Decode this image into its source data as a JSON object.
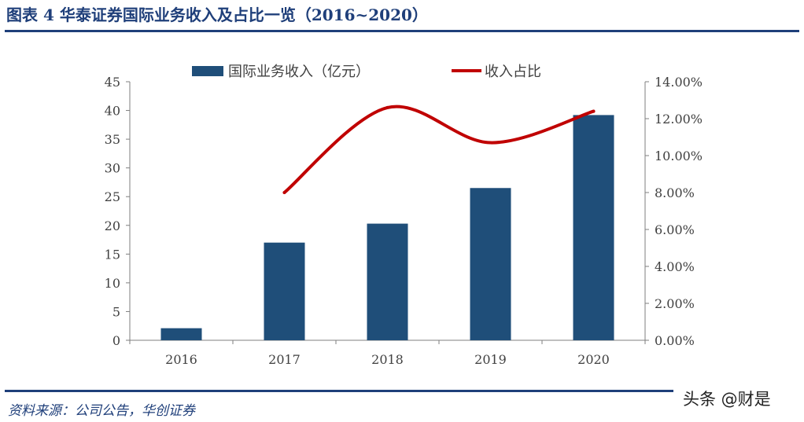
{
  "header": {
    "title": "图表 4   华泰证券国际业务收入及占比一览（2016~2020）"
  },
  "footer": {
    "source": "资料来源：公司公告，华创证券",
    "watermark": "头条 @财是"
  },
  "colors": {
    "bar": "#1f4e79",
    "line": "#c00000",
    "axis": "#7f7f7f",
    "title": "#1f3f7a"
  },
  "chart_data": {
    "type": "bar",
    "categories": [
      "2016",
      "2017",
      "2018",
      "2019",
      "2020"
    ],
    "series": [
      {
        "name": "国际业务收入（亿元）",
        "type": "bar",
        "axis": "left",
        "values": [
          2.1,
          17.0,
          20.3,
          26.5,
          39.2
        ]
      },
      {
        "name": "收入占比",
        "type": "line",
        "axis": "right",
        "values": [
          null,
          8.0,
          12.6,
          10.7,
          12.4
        ]
      }
    ],
    "y_left": {
      "range": [
        0,
        45
      ],
      "ticks": [
        "0",
        "5",
        "10",
        "15",
        "20",
        "25",
        "30",
        "35",
        "40",
        "45"
      ]
    },
    "y_right": {
      "range": [
        0,
        14
      ],
      "ticks": [
        "0.00%",
        "2.00%",
        "4.00%",
        "6.00%",
        "8.00%",
        "10.00%",
        "12.00%",
        "14.00%"
      ]
    },
    "legend_position": "top",
    "grid": false
  }
}
